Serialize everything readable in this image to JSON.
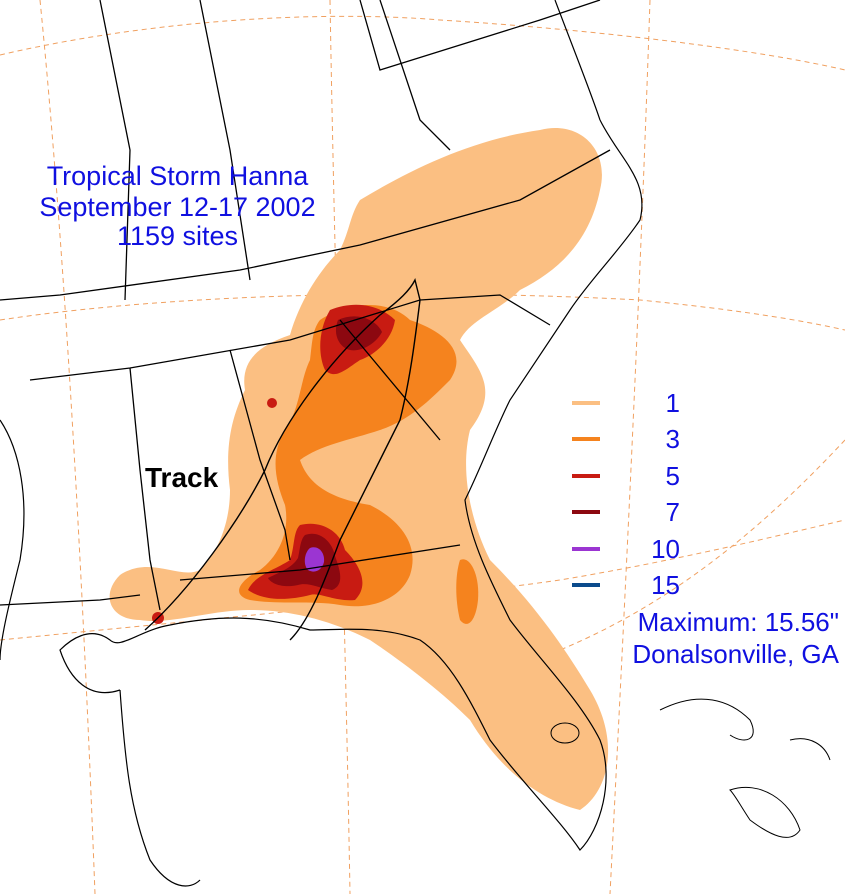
{
  "title": {
    "line1": "Tropical Storm Hanna",
    "line2": "September 12-17 2002",
    "line3": "1159 sites"
  },
  "track_label": "Track",
  "legend": {
    "items": [
      {
        "label": "1",
        "color": "#fbbf82"
      },
      {
        "label": "3",
        "color": "#f5831e"
      },
      {
        "label": "5",
        "color": "#c81b12"
      },
      {
        "label": "7",
        "color": "#8c0810"
      },
      {
        "label": "10",
        "color": "#9b35d2"
      },
      {
        "label": "15",
        "color": "#0b4b8c"
      }
    ]
  },
  "maximum": {
    "line1": "Maximum: 15.56\"",
    "line2": "Donalsonville, GA"
  },
  "colors": {
    "text": "#1010e0",
    "graticule": "#f0a060",
    "borders": "#000000"
  }
}
